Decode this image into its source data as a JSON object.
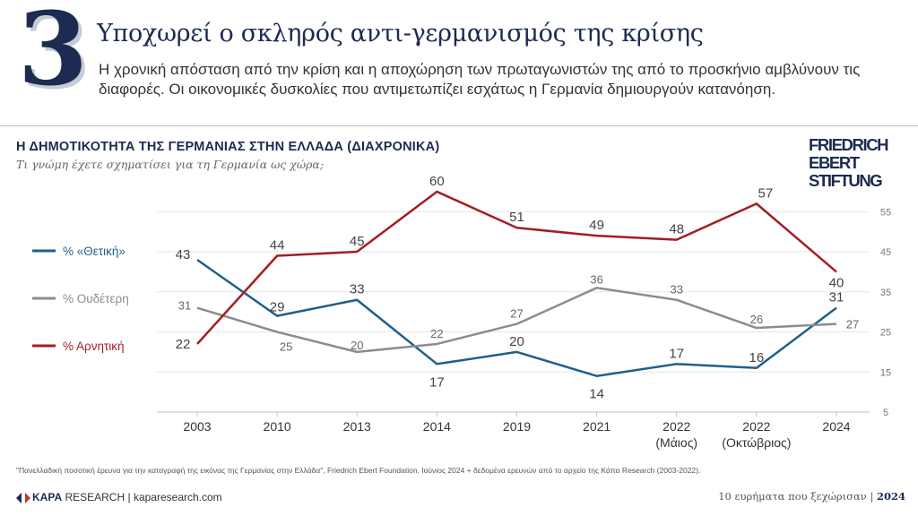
{
  "header": {
    "number": "3",
    "title": "Υποχωρεί ο σκληρός αντι-γερμανισμός της κρίσης",
    "subtitle": "Η χρονική απόσταση από την κρίση και η αποχώρηση των πρωταγωνιστών της από το προσκήνιο αμβλύνουν τις διαφορές. Οι οικονομικές δυσκολίες που αντιμετωπίζει εσχάτως η Γερμανία δημιουργούν κατανόηση."
  },
  "logo": {
    "line1": "FRIEDRICH",
    "line2": "EBERT",
    "line3": "STIFTUNG"
  },
  "footer": {
    "footnote": "\"Πανελλαδική ποσοτική έρευνα για την καταγραφή της εικόνας της Γερμανίας στην Ελλάδα\", Friedrich Ebert Foundation, Ιούνιος 2024 + δεδομένα ερευνών από το αρχείο της Κάπα Research (2003-2022).",
    "brand_bold": "KAPA",
    "brand_rest": " RESEARCH",
    "separator": "|",
    "website": "kaparesearch.com",
    "right_text": "10 ευρήματα που ξεχώρισαν",
    "right_sep": "|",
    "right_year": "2024"
  },
  "chart_data": {
    "type": "line",
    "title": "Η ΔΗΜΟΤΙΚΟΤΗΤΑ ΤΗΣ ΓΕΡΜΑΝΙΑΣ ΣΤΗΝ ΕΛΛΑΔΑ (ΔΙΑΧΡΟΝΙΚΑ)",
    "subtitle": "Τι γνώμη έχετε σχηματίσει για τη Γερμανία ως χώρα;",
    "categories": [
      [
        "2003"
      ],
      [
        "2010"
      ],
      [
        "2013"
      ],
      [
        "2014"
      ],
      [
        "2019"
      ],
      [
        "2021"
      ],
      [
        "2022",
        "(Μάιος)"
      ],
      [
        "2022",
        "(Οκτώβριος)"
      ],
      [
        "2024"
      ]
    ],
    "y_ticks": [
      5,
      15,
      25,
      35,
      45,
      55
    ],
    "ylim": [
      5,
      62
    ],
    "y_axis_side": "right",
    "grid": true,
    "legend_position": "left",
    "series": [
      {
        "name": "% «Θετική»",
        "color": "#1f5f8b",
        "values": [
          43,
          29,
          33,
          17,
          20,
          14,
          17,
          16,
          31
        ]
      },
      {
        "name": "% Ουδέτερη",
        "color": "#8c8c8c",
        "values": [
          31,
          25,
          20,
          22,
          27,
          36,
          33,
          26,
          27
        ]
      },
      {
        "name": "% Αρνητική",
        "color": "#a31d24",
        "values": [
          22,
          44,
          45,
          60,
          51,
          49,
          48,
          57,
          40
        ]
      }
    ]
  }
}
